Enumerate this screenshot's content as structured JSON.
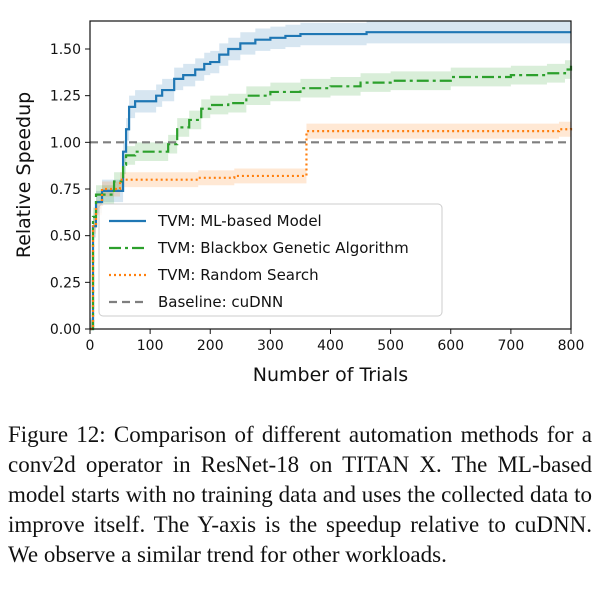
{
  "chart_data": {
    "type": "line",
    "xlabel": "Number of Trials",
    "ylabel": "Relative Speedup",
    "xlim": [
      0,
      800
    ],
    "ylim": [
      0,
      1.65
    ],
    "xticks": [
      "0",
      "100",
      "200",
      "300",
      "400",
      "500",
      "600",
      "700",
      "800"
    ],
    "yticks": [
      "0.00",
      "0.25",
      "0.50",
      "0.75",
      "1.00",
      "1.25",
      "1.50"
    ],
    "legend_position": "center-left",
    "grid": false,
    "series": [
      {
        "name": "TVM: ML-based Model",
        "color": "#1f77b4",
        "style": "solid",
        "x": [
          0,
          5,
          10,
          20,
          45,
          55,
          60,
          65,
          75,
          110,
          120,
          140,
          155,
          175,
          190,
          200,
          215,
          230,
          250,
          275,
          300,
          325,
          350,
          380,
          410,
          460,
          800
        ],
        "y": [
          0.0,
          0.55,
          0.68,
          0.74,
          0.74,
          0.95,
          1.07,
          1.19,
          1.22,
          1.25,
          1.28,
          1.34,
          1.36,
          1.39,
          1.42,
          1.43,
          1.47,
          1.5,
          1.53,
          1.55,
          1.56,
          1.57,
          1.58,
          1.58,
          1.58,
          1.59,
          1.59
        ]
      },
      {
        "name": "TVM: Blackbox Genetic Algorithm",
        "color": "#2ca02c",
        "style": "dashdot",
        "x": [
          0,
          5,
          10,
          40,
          55,
          60,
          75,
          130,
          145,
          165,
          185,
          200,
          230,
          260,
          300,
          350,
          400,
          450,
          500,
          600,
          670,
          700,
          760,
          790,
          800
        ],
        "y": [
          0.0,
          0.6,
          0.72,
          0.79,
          0.88,
          0.93,
          0.95,
          0.99,
          1.08,
          1.12,
          1.18,
          1.2,
          1.21,
          1.25,
          1.27,
          1.29,
          1.3,
          1.32,
          1.33,
          1.35,
          1.35,
          1.36,
          1.37,
          1.39,
          1.41
        ]
      },
      {
        "name": "TVM: Random Search",
        "color": "#ff7f0e",
        "style": "dotted",
        "x": [
          0,
          5,
          10,
          20,
          50,
          150,
          180,
          240,
          350,
          360,
          400,
          500,
          600,
          700,
          760,
          780,
          800
        ],
        "y": [
          0.0,
          0.55,
          0.65,
          0.75,
          0.8,
          0.8,
          0.81,
          0.82,
          0.82,
          1.06,
          1.06,
          1.06,
          1.06,
          1.06,
          1.06,
          1.07,
          1.08
        ]
      },
      {
        "name": "Baseline: cuDNN",
        "color": "#7f7f7f",
        "style": "dashed",
        "x": [
          0,
          800
        ],
        "y": [
          1.0,
          1.0
        ]
      }
    ]
  },
  "caption": "Figure 12: Comparison of different automation methods for a conv2d operator in ResNet-18 on TITAN X. The ML-based model starts with no training data and uses the collected data to improve itself.  The Y-axis is the speedup relative to cuDNN. We observe a similar trend for other workloads."
}
